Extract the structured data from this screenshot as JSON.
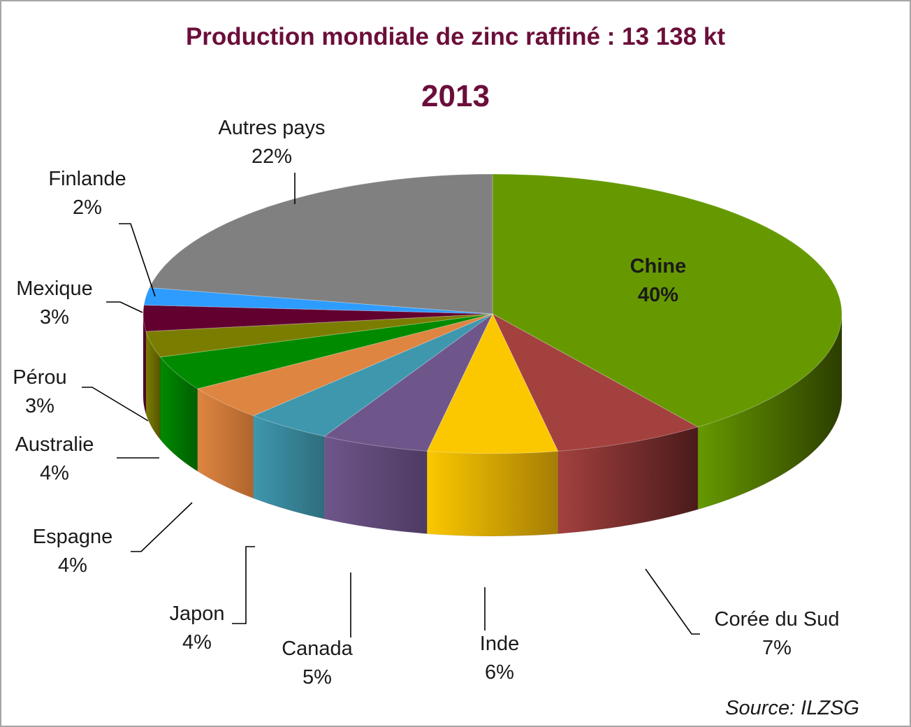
{
  "chart_data": {
    "type": "pie",
    "title": "Production mondiale de zinc raffiné   : 13 138 kt",
    "subtitle": "2013",
    "source": "Source:  ILZSG",
    "series": [
      {
        "label": "Chine",
        "value": 40,
        "display": "40%",
        "color": "#669900",
        "side": "#2c3e00"
      },
      {
        "label": "Corée  du  Sud",
        "value": 7,
        "display": "7%",
        "color": "#a3413f",
        "side": "#4a1a1a"
      },
      {
        "label": "Inde",
        "value": 6,
        "display": "6%",
        "color": "#fbc800",
        "side": "#a57d05"
      },
      {
        "label": "Canada",
        "value": 5,
        "display": "5%",
        "color": "#6e568b",
        "side": "#4e3a62"
      },
      {
        "label": "Japon",
        "value": 4,
        "display": "4%",
        "color": "#3e97ad",
        "side": "#2e6e7e"
      },
      {
        "label": "Espagne",
        "value": 4,
        "display": "4%",
        "color": "#de8541",
        "side": "#b0652c"
      },
      {
        "label": "Australie",
        "value": 4,
        "display": "4%",
        "color": "#008a00",
        "side": "#005f00"
      },
      {
        "label": "Pérou",
        "value": 3,
        "display": "3%",
        "color": "#7b7d00",
        "side": "#555600"
      },
      {
        "label": "Mexique",
        "value": 3,
        "display": "3%",
        "color": "#620030",
        "side": "#420020"
      },
      {
        "label": "Finlande",
        "value": 2,
        "display": "2%",
        "color": "#2e9cff",
        "side": "#1d6fc0"
      },
      {
        "label": "Autres pays",
        "value": 22,
        "display": "22%",
        "color": "#808080",
        "side": "#5a5a5a"
      }
    ]
  }
}
